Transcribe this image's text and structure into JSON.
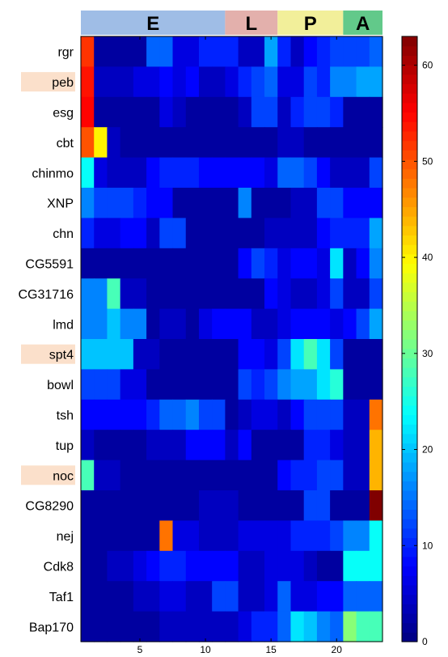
{
  "chart_data": {
    "type": "heatmap",
    "title": "",
    "xlabel": "",
    "ylabel": "",
    "stages": [
      {
        "label": "E",
        "start": 1,
        "end": 11,
        "color": "#9fbde6"
      },
      {
        "label": "L",
        "start": 12,
        "end": 15,
        "color": "#e3b0ac"
      },
      {
        "label": "P",
        "start": 16,
        "end": 20,
        "color": "#f2ef9a"
      },
      {
        "label": "A",
        "start": 21,
        "end": 23,
        "color": "#62c98a"
      }
    ],
    "x_ticks": [
      5,
      10,
      15,
      20
    ],
    "rows": [
      "rgr",
      "peb",
      "esg",
      "cbt",
      "chinmo",
      "XNP",
      "chn",
      "CG5591",
      "CG31716",
      "lmd",
      "spt4",
      "bowl",
      "tsh",
      "tup",
      "noc",
      "CG8290",
      "nej",
      "Cdk8",
      "Taf1",
      "Bap170"
    ],
    "highlighted_rows": [
      "peb",
      "spt4",
      "noc"
    ],
    "highlight_color": "#fbe0cb",
    "colorbar": {
      "min": 0,
      "max": 63,
      "ticks": [
        0,
        10,
        20,
        30,
        40,
        50,
        60
      ]
    },
    "values": [
      [
        52,
        2,
        2,
        2,
        2,
        14,
        14,
        6,
        6,
        10,
        10,
        10,
        4,
        4,
        18,
        10,
        4,
        8,
        10,
        12,
        12,
        12,
        14
      ],
      [
        54,
        4,
        4,
        4,
        6,
        6,
        8,
        6,
        8,
        4,
        4,
        6,
        10,
        12,
        14,
        6,
        6,
        12,
        10,
        16,
        16,
        18,
        18
      ],
      [
        55,
        2,
        2,
        2,
        2,
        2,
        6,
        4,
        2,
        2,
        2,
        2,
        4,
        12,
        12,
        4,
        10,
        12,
        12,
        10,
        2,
        2,
        2
      ],
      [
        50,
        40,
        4,
        2,
        2,
        2,
        2,
        2,
        2,
        2,
        2,
        2,
        2,
        2,
        2,
        4,
        4,
        2,
        2,
        2,
        2,
        2,
        2
      ],
      [
        24,
        6,
        4,
        4,
        4,
        8,
        10,
        10,
        10,
        8,
        8,
        8,
        8,
        8,
        6,
        14,
        14,
        12,
        8,
        4,
        4,
        4,
        12
      ],
      [
        16,
        12,
        12,
        12,
        10,
        8,
        8,
        2,
        2,
        2,
        2,
        2,
        16,
        2,
        2,
        2,
        4,
        4,
        12,
        12,
        8,
        8,
        8
      ],
      [
        10,
        6,
        6,
        8,
        8,
        4,
        12,
        12,
        2,
        2,
        2,
        2,
        2,
        2,
        4,
        4,
        4,
        4,
        8,
        10,
        10,
        10,
        18
      ],
      [
        2,
        2,
        2,
        2,
        2,
        2,
        2,
        2,
        2,
        2,
        2,
        2,
        8,
        12,
        10,
        6,
        8,
        8,
        6,
        22,
        4,
        8,
        16
      ],
      [
        16,
        16,
        28,
        4,
        4,
        2,
        2,
        2,
        2,
        2,
        2,
        2,
        2,
        2,
        8,
        6,
        4,
        4,
        6,
        12,
        4,
        4,
        12
      ],
      [
        16,
        16,
        20,
        16,
        16,
        2,
        4,
        4,
        2,
        6,
        8,
        8,
        8,
        4,
        4,
        6,
        8,
        8,
        8,
        6,
        8,
        12,
        18
      ],
      [
        20,
        20,
        20,
        20,
        4,
        4,
        2,
        2,
        2,
        2,
        2,
        2,
        8,
        8,
        6,
        12,
        22,
        28,
        22,
        12,
        2,
        2,
        2
      ],
      [
        12,
        12,
        12,
        6,
        6,
        2,
        2,
        2,
        2,
        2,
        2,
        2,
        12,
        10,
        12,
        16,
        18,
        18,
        22,
        26,
        2,
        2,
        2
      ],
      [
        8,
        8,
        8,
        8,
        8,
        10,
        14,
        14,
        16,
        12,
        12,
        2,
        4,
        6,
        6,
        4,
        8,
        12,
        12,
        12,
        4,
        4,
        48
      ],
      [
        4,
        2,
        2,
        2,
        2,
        4,
        4,
        4,
        8,
        8,
        8,
        4,
        8,
        2,
        2,
        2,
        2,
        10,
        10,
        6,
        4,
        4,
        44
      ],
      [
        28,
        4,
        4,
        2,
        2,
        2,
        2,
        2,
        2,
        2,
        2,
        2,
        2,
        2,
        2,
        8,
        10,
        10,
        12,
        12,
        4,
        4,
        44
      ],
      [
        2,
        2,
        2,
        2,
        2,
        2,
        2,
        2,
        2,
        4,
        4,
        4,
        2,
        2,
        2,
        2,
        2,
        12,
        12,
        2,
        2,
        2,
        63
      ],
      [
        2,
        2,
        2,
        2,
        2,
        2,
        48,
        6,
        6,
        4,
        4,
        4,
        6,
        6,
        6,
        6,
        10,
        10,
        10,
        12,
        16,
        16,
        24
      ],
      [
        2,
        2,
        4,
        4,
        6,
        8,
        10,
        10,
        8,
        8,
        8,
        8,
        4,
        4,
        6,
        6,
        6,
        4,
        2,
        2,
        24,
        24,
        24
      ],
      [
        2,
        2,
        2,
        2,
        4,
        4,
        6,
        6,
        4,
        4,
        12,
        12,
        4,
        4,
        6,
        14,
        6,
        6,
        8,
        8,
        14,
        14,
        14
      ],
      [
        2,
        2,
        2,
        2,
        2,
        2,
        4,
        4,
        4,
        4,
        4,
        4,
        6,
        10,
        10,
        14,
        22,
        20,
        16,
        14,
        32,
        28,
        28
      ]
    ]
  }
}
